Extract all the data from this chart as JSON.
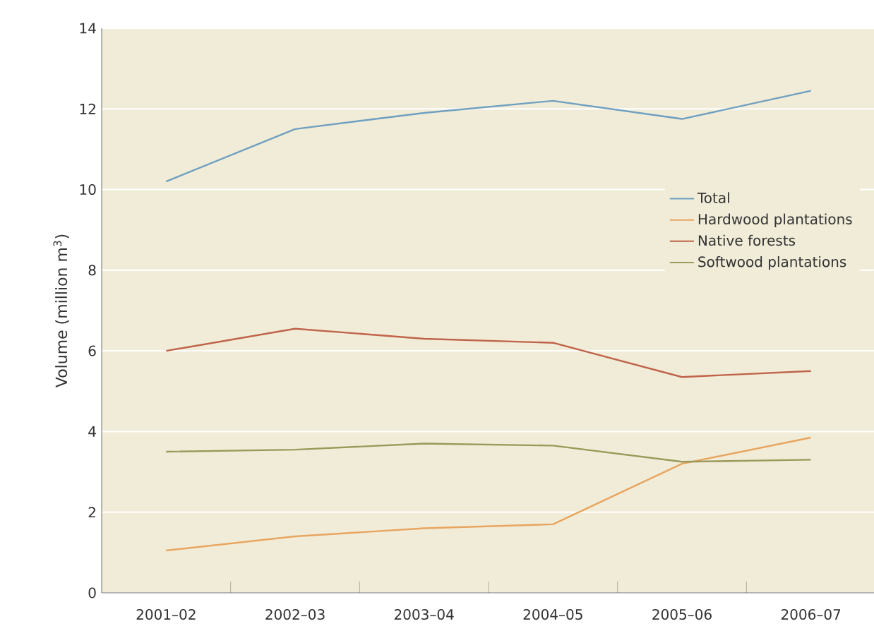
{
  "chart_data": {
    "type": "line",
    "ylabel": "Volume (million m$^{3}$)",
    "categories": [
      "2001–02",
      "2002–03",
      "2003–04",
      "2004–05",
      "2005–06",
      "2006–07"
    ],
    "series": [
      {
        "name": "Total",
        "color": "#6f9fc0",
        "values": [
          10.2,
          11.5,
          11.9,
          12.2,
          11.75,
          12.45
        ]
      },
      {
        "name": "Hardwood plantations",
        "color": "#e8a560",
        "values": [
          1.05,
          1.4,
          1.6,
          1.7,
          3.2,
          3.85
        ]
      },
      {
        "name": "Native forests",
        "color": "#c0634a",
        "values": [
          6.0,
          6.55,
          6.3,
          6.2,
          5.35,
          5.5
        ]
      },
      {
        "name": "Softwood plantations",
        "color": "#9a9a5a",
        "values": [
          3.5,
          3.55,
          3.7,
          3.65,
          3.25,
          3.3
        ]
      }
    ],
    "ylim": [
      0,
      14
    ],
    "yticks": [
      0,
      2,
      4,
      6,
      8,
      10,
      12,
      14
    ],
    "grid": "y",
    "legend": "right",
    "marker": "none",
    "line_style": "solid"
  }
}
